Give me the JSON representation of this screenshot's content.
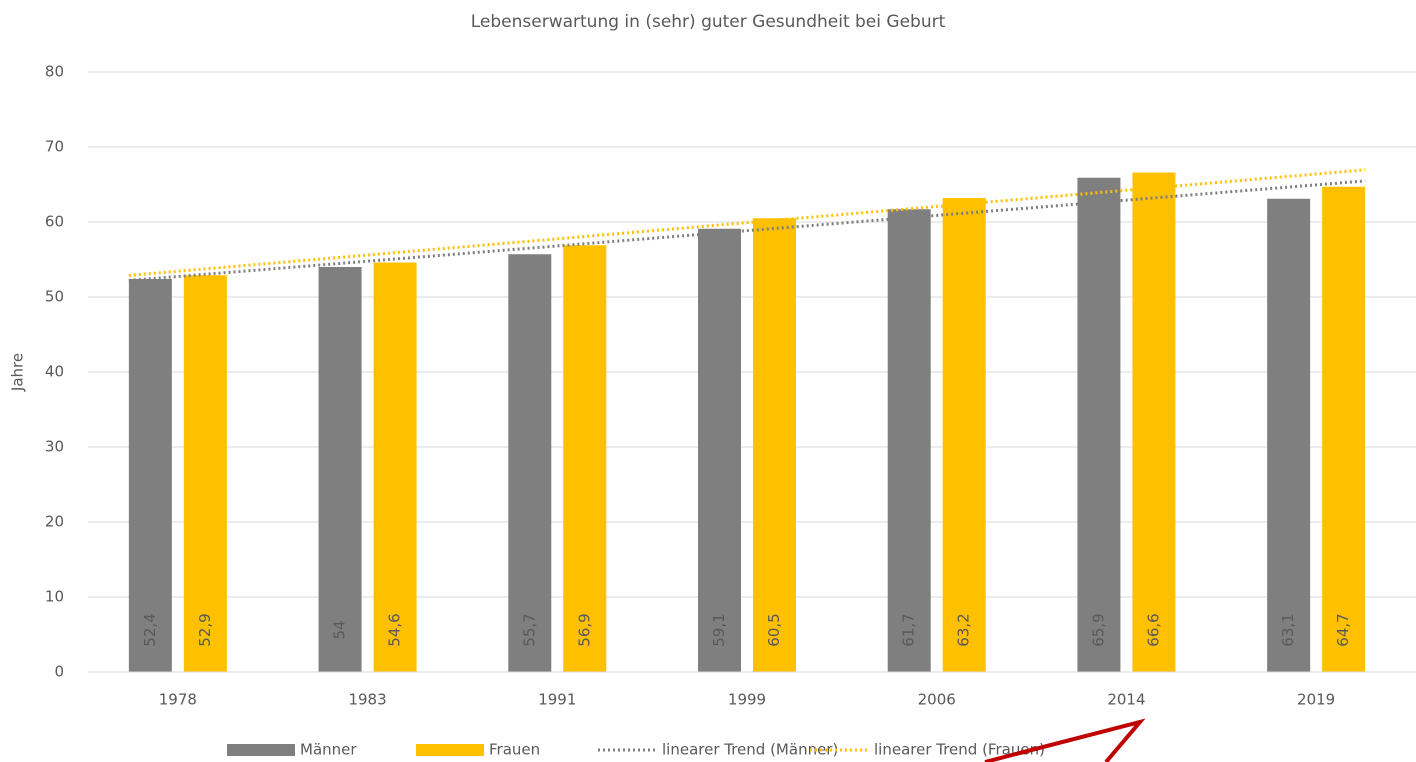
{
  "chart_data": {
    "type": "bar",
    "title": "Lebenserwartung in (sehr) guter Gesundheit bei Geburt",
    "y_label": "Jahre",
    "categories": [
      "1978",
      "1983",
      "1991",
      "1999",
      "2006",
      "2014",
      "2019"
    ],
    "series": [
      {
        "name": "Männer",
        "color": "#7f7f7f",
        "trend_name": "linearer Trend (Männer)",
        "values": [
          52.4,
          54,
          55.7,
          59.1,
          61.7,
          65.9,
          63.1
        ],
        "value_labels": [
          "52,4",
          "54",
          "55,7",
          "59,1",
          "61,7",
          "65,9",
          "63,1"
        ]
      },
      {
        "name": "Frauen",
        "color": "#ffc000",
        "trend_name": "linearer Trend (Frauen)",
        "values": [
          52.9,
          54.6,
          56.9,
          60.5,
          63.2,
          66.6,
          64.7
        ],
        "value_labels": [
          "52,9",
          "54,6",
          "56,9",
          "60,5",
          "63,2",
          "66,6",
          "64,7"
        ]
      }
    ],
    "trendline": "linear",
    "ylim": [
      0,
      80
    ],
    "yticks": [
      0,
      10,
      20,
      30,
      40,
      50,
      60,
      70,
      80
    ],
    "grid": true,
    "legend": "bottom"
  }
}
